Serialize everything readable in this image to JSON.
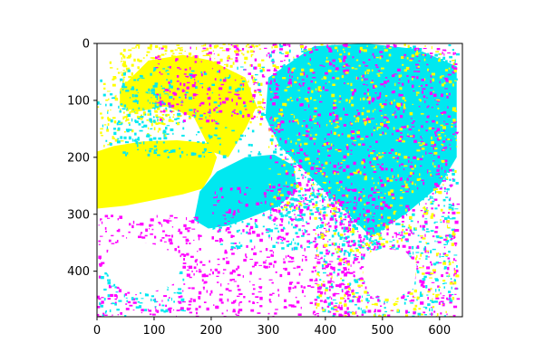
{
  "chart_data": {
    "type": "heatmap",
    "description_of_image": "",
    "x_range": [
      0,
      640
    ],
    "y_range": [
      480,
      0
    ],
    "xlim": [
      0,
      640
    ],
    "ylim": [
      480,
      0
    ],
    "x_ticks": [
      0,
      100,
      200,
      300,
      400,
      500,
      600
    ],
    "y_ticks": [
      0,
      100,
      200,
      300,
      400
    ],
    "x_tick_labels": [
      "0",
      "100",
      "200",
      "300",
      "400",
      "500",
      "600"
    ],
    "y_tick_labels": [
      "0",
      "100",
      "200",
      "300",
      "400"
    ],
    "colors": {
      "yellow": "#ffff00",
      "cyan": "#00e8f0",
      "magenta": "#ff00ff",
      "white": "#ffffff",
      "axis": "#000000"
    },
    "regions": [
      {
        "color": "yellow",
        "points": [
          [
            0,
            190
          ],
          [
            0,
            290
          ],
          [
            50,
            285
          ],
          [
            100,
            275
          ],
          [
            150,
            265
          ],
          [
            185,
            255
          ],
          [
            200,
            230
          ],
          [
            210,
            200
          ],
          [
            195,
            175
          ],
          [
            140,
            170
          ],
          [
            80,
            172
          ],
          [
            30,
            180
          ]
        ]
      },
      {
        "color": "yellow",
        "points": [
          [
            40,
            80
          ],
          [
            90,
            30
          ],
          [
            150,
            20
          ],
          [
            200,
            30
          ],
          [
            260,
            60
          ],
          [
            280,
            110
          ],
          [
            260,
            150
          ],
          [
            230,
            200
          ],
          [
            200,
            190
          ],
          [
            170,
            130
          ],
          [
            120,
            110
          ],
          [
            70,
            120
          ],
          [
            40,
            110
          ]
        ]
      },
      {
        "color": "cyan",
        "points": [
          [
            170,
            310
          ],
          [
            180,
            260
          ],
          [
            210,
            225
          ],
          [
            260,
            200
          ],
          [
            310,
            195
          ],
          [
            345,
            215
          ],
          [
            350,
            255
          ],
          [
            320,
            285
          ],
          [
            270,
            305
          ],
          [
            230,
            320
          ],
          [
            195,
            325
          ]
        ]
      },
      {
        "color": "cyan",
        "points": [
          [
            300,
            60
          ],
          [
            380,
            5
          ],
          [
            470,
            0
          ],
          [
            560,
            10
          ],
          [
            630,
            40
          ],
          [
            630,
            200
          ],
          [
            600,
            250
          ],
          [
            540,
            300
          ],
          [
            480,
            340
          ],
          [
            440,
            300
          ],
          [
            400,
            260
          ],
          [
            360,
            220
          ],
          [
            320,
            180
          ],
          [
            295,
            130
          ]
        ]
      }
    ],
    "speckles": [
      {
        "color": "cyan",
        "xrange": [
          300,
          630
        ],
        "yrange": [
          0,
          300
        ],
        "count": 900
      },
      {
        "color": "magenta",
        "xrange": [
          300,
          630
        ],
        "yrange": [
          0,
          300
        ],
        "count": 650
      },
      {
        "color": "yellow",
        "xrange": [
          300,
          630
        ],
        "yrange": [
          0,
          300
        ],
        "count": 500
      },
      {
        "color": "yellow",
        "xrange": [
          40,
          290
        ],
        "yrange": [
          0,
          140
        ],
        "count": 500
      },
      {
        "color": "cyan",
        "xrange": [
          40,
          290
        ],
        "yrange": [
          40,
          200
        ],
        "count": 220
      },
      {
        "color": "magenta",
        "xrange": [
          100,
          300
        ],
        "yrange": [
          0,
          140
        ],
        "count": 180
      },
      {
        "color": "magenta",
        "xrange": [
          0,
          180
        ],
        "yrange": [
          300,
          480
        ],
        "count": 300
      },
      {
        "color": "magenta",
        "xrange": [
          180,
          460
        ],
        "yrange": [
          380,
          480
        ],
        "count": 220
      },
      {
        "color": "magenta",
        "xrange": [
          200,
          500
        ],
        "yrange": [
          250,
          380
        ],
        "count": 300
      },
      {
        "color": "cyan",
        "xrange": [
          200,
          500
        ],
        "yrange": [
          240,
          360
        ],
        "count": 280
      },
      {
        "color": "cyan",
        "xrange": [
          380,
          630
        ],
        "yrange": [
          300,
          480
        ],
        "count": 350
      },
      {
        "color": "magenta",
        "xrange": [
          380,
          630
        ],
        "yrange": [
          300,
          480
        ],
        "count": 350
      },
      {
        "color": "yellow",
        "xrange": [
          380,
          630
        ],
        "yrange": [
          300,
          480
        ],
        "count": 220
      },
      {
        "color": "cyan",
        "xrange": [
          0,
          150
        ],
        "yrange": [
          400,
          480
        ],
        "count": 80
      },
      {
        "color": "yellow",
        "xrange": [
          0,
          120
        ],
        "yrange": [
          30,
          180
        ],
        "count": 120
      },
      {
        "color": "cyan",
        "xrange": [
          0,
          120
        ],
        "yrange": [
          60,
          180
        ],
        "count": 100
      }
    ],
    "blanks": [
      {
        "points": [
          [
            470,
            370
          ],
          [
            500,
            360
          ],
          [
            540,
            365
          ],
          [
            560,
            390
          ],
          [
            555,
            430
          ],
          [
            520,
            450
          ],
          [
            480,
            440
          ],
          [
            465,
            410
          ]
        ]
      },
      {
        "points": [
          [
            20,
            360
          ],
          [
            60,
            345
          ],
          [
            110,
            355
          ],
          [
            150,
            380
          ],
          [
            140,
            420
          ],
          [
            90,
            440
          ],
          [
            40,
            430
          ],
          [
            15,
            400
          ]
        ]
      }
    ]
  }
}
